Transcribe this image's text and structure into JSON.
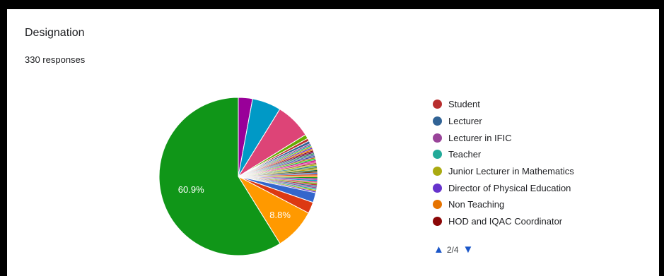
{
  "card": {
    "title": "Designation",
    "responses": "330 responses"
  },
  "chart_data": {
    "type": "pie",
    "title": "Designation",
    "slices": [
      {
        "name": "",
        "value": 3.0,
        "color": "#990099"
      },
      {
        "name": "",
        "value": 6.1,
        "color": "#0099c6"
      },
      {
        "name": "",
        "value": 7.6,
        "color": "#dd4477"
      },
      {
        "name": "",
        "value": 0.9,
        "color": "#66aa00"
      },
      {
        "name": "",
        "value": 0.6,
        "color": "#b82e2e"
      },
      {
        "name": "",
        "value": 0.6,
        "color": "#316395"
      },
      {
        "name": "",
        "value": 0.3,
        "color": "#994499"
      },
      {
        "name": "",
        "value": 0.3,
        "color": "#22aa99"
      },
      {
        "name": "",
        "value": 0.3,
        "color": "#aaaa11"
      },
      {
        "name": "",
        "value": 0.3,
        "color": "#6633cc"
      },
      {
        "name": "",
        "value": 0.3,
        "color": "#e67300"
      },
      {
        "name": "",
        "value": 0.3,
        "color": "#8b0707"
      },
      {
        "name": "",
        "value": 0.3,
        "color": "#651067"
      },
      {
        "name": "",
        "value": 0.3,
        "color": "#329262"
      },
      {
        "name": "",
        "value": 0.3,
        "color": "#5574a6"
      },
      {
        "name": "",
        "value": 0.3,
        "color": "#3b3eac"
      },
      {
        "name": "",
        "value": 0.3,
        "color": "#b77322"
      },
      {
        "name": "",
        "value": 0.3,
        "color": "#16d620"
      },
      {
        "name": "",
        "value": 0.3,
        "color": "#b91383"
      },
      {
        "name": "",
        "value": 0.3,
        "color": "#f4359e"
      },
      {
        "name": "",
        "value": 0.3,
        "color": "#9c5935"
      },
      {
        "name": "",
        "value": 0.3,
        "color": "#a9c413"
      },
      {
        "name": "",
        "value": 0.3,
        "color": "#2a778d"
      },
      {
        "name": "",
        "value": 0.3,
        "color": "#668d1c"
      },
      {
        "name": "",
        "value": 0.3,
        "color": "#bea413"
      },
      {
        "name": "",
        "value": 0.3,
        "color": "#0c5922"
      },
      {
        "name": "",
        "value": 0.3,
        "color": "#743411"
      },
      {
        "name": "",
        "value": 0.3,
        "color": "#3366cc"
      },
      {
        "name": "",
        "value": 0.3,
        "color": "#dc3912"
      },
      {
        "name": "",
        "value": 0.3,
        "color": "#ff9900"
      },
      {
        "name": "",
        "value": 0.3,
        "color": "#109618"
      },
      {
        "name": "",
        "value": 0.3,
        "color": "#990099"
      },
      {
        "name": "",
        "value": 0.3,
        "color": "#0099c6"
      },
      {
        "name": "",
        "value": 0.3,
        "color": "#dd4477"
      },
      {
        "name": "",
        "value": 0.3,
        "color": "#66aa00"
      },
      {
        "name": "",
        "value": 0.3,
        "color": "#b82e2e"
      },
      {
        "name": "",
        "value": 0.3,
        "color": "#316395"
      },
      {
        "name": "",
        "value": 0.3,
        "color": "#994499"
      },
      {
        "name": "",
        "value": 0.3,
        "color": "#22aa99"
      },
      {
        "name": "",
        "value": 0.3,
        "color": "#aaaa11"
      },
      {
        "name": "",
        "value": 0.3,
        "color": "#6633cc"
      },
      {
        "name": "",
        "value": 2.1,
        "color": "#3366cc"
      },
      {
        "name": "",
        "value": 2.4,
        "color": "#dc3912"
      },
      {
        "name": "",
        "value": 8.8,
        "color": "#ff9900",
        "label": "8.8%"
      },
      {
        "name": "",
        "value": 60.9,
        "color": "#109618",
        "label": "60.9%"
      }
    ],
    "legend": {
      "placement": "right",
      "entries": [
        {
          "name": "Student",
          "color": "#b82e2e"
        },
        {
          "name": "Lecturer",
          "color": "#316395"
        },
        {
          "name": "Lecturer in IFIC",
          "color": "#994499"
        },
        {
          "name": "Teacher",
          "color": "#22aa99"
        },
        {
          "name": "Junior Lecturer in Mathematics",
          "color": "#aaaa11"
        },
        {
          "name": "Director of Physical Education",
          "color": "#6633cc"
        },
        {
          "name": "Non Teaching",
          "color": "#e67300"
        },
        {
          "name": "HOD and IQAC Coordinator",
          "color": "#8b0707"
        }
      ],
      "page_indicator": "2/4"
    }
  }
}
